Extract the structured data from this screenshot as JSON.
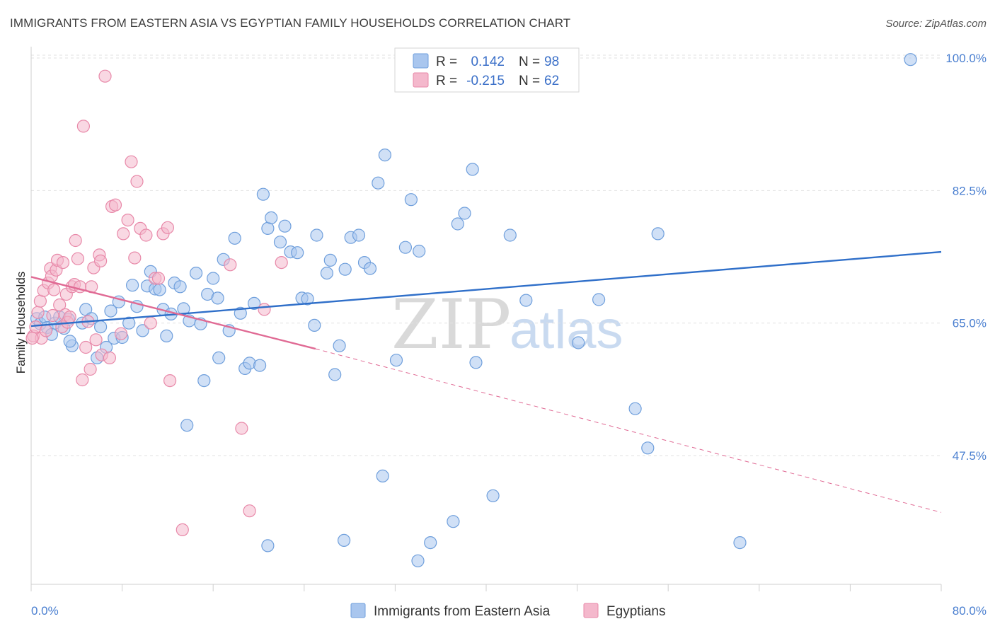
{
  "header": {
    "title": "IMMIGRANTS FROM EASTERN ASIA VS EGYPTIAN FAMILY HOUSEHOLDS CORRELATION CHART",
    "source": "Source: ZipAtlas.com"
  },
  "watermark": {
    "zip": "ZIP",
    "atlas": "atlas"
  },
  "legend": {
    "rows": [
      {
        "r_label": "R =",
        "r_value": "0.142",
        "n_label": "N =",
        "n_value": "98"
      },
      {
        "r_label": "R =",
        "r_value": "-0.215",
        "n_label": "N =",
        "n_value": "62"
      }
    ]
  },
  "bottom_legend": {
    "items": [
      "Immigrants from Eastern Asia",
      "Egyptians"
    ]
  },
  "colors": {
    "blue": "#6f9fdc",
    "blue_fill": "#a9c6ee",
    "blue_line": "#2f6fc9",
    "pink": "#e889a9",
    "pink_fill": "#f4b8cc",
    "pink_line": "#e06a94",
    "grid": "#e2e2e2"
  },
  "chart_data": {
    "type": "scatter",
    "title": "IMMIGRANTS FROM EASTERN ASIA VS EGYPTIAN FAMILY HOUSEHOLDS CORRELATION CHART",
    "xlabel": "",
    "ylabel": "Family Households",
    "xlim": [
      0,
      80
    ],
    "ylim": [
      30.5,
      101.5
    ],
    "x_tick_labels": [
      "0.0%",
      "80.0%"
    ],
    "y_ticks": [
      47.5,
      65.0,
      82.5,
      100.0
    ],
    "y_tick_labels": [
      "47.5%",
      "65.0%",
      "82.5%",
      "100.0%"
    ],
    "grid": true,
    "legend_position": "top-center",
    "series": [
      {
        "name": "Immigrants from Eastern Asia",
        "color": "#6f9fdc",
        "r": 0.142,
        "n": 98,
        "trend": {
          "x": [
            0,
            80
          ],
          "y": [
            64.6,
            74.4
          ]
        },
        "points": [
          [
            0.5,
            65.6
          ],
          [
            0.8,
            64.9
          ],
          [
            1.2,
            65.8
          ],
          [
            1.4,
            64.4
          ],
          [
            1.8,
            63.5
          ],
          [
            2.1,
            65.0
          ],
          [
            2.5,
            65.8
          ],
          [
            2.9,
            64.3
          ],
          [
            3.3,
            65.5
          ],
          [
            3.6,
            62.0
          ],
          [
            3.4,
            62.6
          ],
          [
            4.5,
            65.0
          ],
          [
            4.8,
            66.8
          ],
          [
            5.3,
            65.6
          ],
          [
            5.8,
            60.4
          ],
          [
            6.1,
            64.5
          ],
          [
            6.6,
            61.8
          ],
          [
            7.0,
            66.6
          ],
          [
            7.3,
            63.0
          ],
          [
            7.7,
            67.8
          ],
          [
            8.0,
            63.1
          ],
          [
            8.6,
            65.0
          ],
          [
            8.9,
            70.0
          ],
          [
            9.3,
            67.2
          ],
          [
            9.8,
            64.0
          ],
          [
            10.2,
            69.9
          ],
          [
            10.5,
            71.8
          ],
          [
            10.9,
            69.5
          ],
          [
            11.3,
            69.4
          ],
          [
            11.6,
            66.8
          ],
          [
            11.9,
            63.3
          ],
          [
            12.3,
            66.2
          ],
          [
            12.6,
            70.3
          ],
          [
            13.1,
            69.8
          ],
          [
            13.4,
            66.9
          ],
          [
            13.9,
            65.3
          ],
          [
            14.5,
            71.6
          ],
          [
            14.9,
            64.9
          ],
          [
            15.5,
            68.8
          ],
          [
            16.0,
            70.9
          ],
          [
            16.4,
            68.3
          ],
          [
            16.9,
            73.4
          ],
          [
            17.4,
            64.0
          ],
          [
            17.9,
            76.2
          ],
          [
            18.4,
            66.3
          ],
          [
            18.8,
            59.0
          ],
          [
            19.2,
            59.7
          ],
          [
            19.6,
            67.6
          ],
          [
            20.1,
            59.4
          ],
          [
            20.4,
            82.0
          ],
          [
            20.8,
            77.5
          ],
          [
            21.1,
            78.9
          ],
          [
            21.9,
            75.7
          ],
          [
            22.3,
            77.8
          ],
          [
            22.8,
            74.4
          ],
          [
            23.4,
            74.3
          ],
          [
            23.8,
            68.3
          ],
          [
            24.3,
            68.2
          ],
          [
            24.9,
            64.7
          ],
          [
            25.1,
            76.6
          ],
          [
            26.0,
            71.6
          ],
          [
            26.3,
            73.3
          ],
          [
            26.7,
            58.2
          ],
          [
            27.1,
            62.0
          ],
          [
            27.6,
            72.1
          ],
          [
            28.1,
            76.3
          ],
          [
            28.8,
            76.6
          ],
          [
            29.3,
            73.0
          ],
          [
            29.8,
            72.2
          ],
          [
            30.5,
            83.5
          ],
          [
            31.1,
            87.2
          ],
          [
            32.1,
            60.1
          ],
          [
            32.9,
            75.0
          ],
          [
            33.4,
            81.3
          ],
          [
            34.1,
            74.5
          ],
          [
            35.1,
            36.0
          ],
          [
            37.1,
            38.8
          ],
          [
            37.5,
            78.1
          ],
          [
            38.1,
            79.5
          ],
          [
            38.8,
            85.3
          ],
          [
            39.1,
            59.8
          ],
          [
            40.6,
            42.2
          ],
          [
            42.1,
            76.6
          ],
          [
            48.1,
            62.4
          ],
          [
            49.9,
            68.1
          ],
          [
            53.1,
            53.7
          ],
          [
            54.2,
            48.5
          ],
          [
            55.1,
            76.8
          ],
          [
            16.5,
            60.4
          ],
          [
            27.5,
            36.3
          ],
          [
            34.0,
            33.6
          ],
          [
            43.5,
            68.0
          ],
          [
            30.9,
            44.8
          ],
          [
            20.8,
            35.6
          ],
          [
            62.3,
            36.0
          ],
          [
            77.3,
            99.8
          ],
          [
            13.7,
            51.5
          ],
          [
            15.2,
            57.4
          ]
        ]
      },
      {
        "name": "Egyptians",
        "color": "#e889a9",
        "r": -0.215,
        "n": 62,
        "trend": {
          "x": [
            0,
            25
          ],
          "y": [
            71.1,
            61.6
          ]
        },
        "trend_extension": {
          "x": [
            25,
            80
          ],
          "y": [
            61.6,
            40.0
          ]
        },
        "points": [
          [
            0.2,
            63.3
          ],
          [
            0.4,
            64.5
          ],
          [
            0.6,
            66.4
          ],
          [
            0.8,
            67.9
          ],
          [
            0.9,
            63.0
          ],
          [
            1.1,
            69.3
          ],
          [
            1.3,
            64.0
          ],
          [
            1.5,
            70.3
          ],
          [
            1.7,
            72.2
          ],
          [
            1.8,
            71.2
          ],
          [
            1.9,
            66.0
          ],
          [
            2.0,
            69.4
          ],
          [
            2.2,
            72.0
          ],
          [
            2.3,
            73.3
          ],
          [
            2.5,
            67.4
          ],
          [
            2.7,
            64.5
          ],
          [
            2.8,
            73.0
          ],
          [
            3.0,
            66.1
          ],
          [
            3.1,
            68.8
          ],
          [
            3.2,
            65.1
          ],
          [
            3.4,
            65.8
          ],
          [
            3.6,
            69.8
          ],
          [
            3.8,
            70.1
          ],
          [
            3.9,
            75.9
          ],
          [
            4.1,
            73.5
          ],
          [
            4.3,
            69.8
          ],
          [
            4.5,
            57.5
          ],
          [
            4.6,
            91.0
          ],
          [
            4.8,
            61.8
          ],
          [
            5.0,
            65.2
          ],
          [
            5.2,
            58.9
          ],
          [
            5.3,
            69.8
          ],
          [
            5.5,
            72.3
          ],
          [
            5.7,
            62.8
          ],
          [
            6.0,
            74.0
          ],
          [
            6.1,
            73.2
          ],
          [
            6.2,
            60.8
          ],
          [
            6.5,
            97.6
          ],
          [
            6.9,
            60.4
          ],
          [
            7.1,
            80.4
          ],
          [
            7.4,
            80.6
          ],
          [
            7.9,
            63.6
          ],
          [
            8.1,
            76.8
          ],
          [
            8.5,
            78.6
          ],
          [
            8.8,
            86.3
          ],
          [
            9.1,
            73.6
          ],
          [
            9.3,
            83.7
          ],
          [
            9.6,
            77.5
          ],
          [
            10.1,
            76.6
          ],
          [
            10.5,
            65.0
          ],
          [
            10.9,
            70.9
          ],
          [
            11.2,
            70.9
          ],
          [
            11.6,
            76.8
          ],
          [
            12.0,
            77.6
          ],
          [
            12.2,
            57.4
          ],
          [
            13.3,
            37.7
          ],
          [
            17.5,
            72.7
          ],
          [
            18.5,
            51.1
          ],
          [
            19.2,
            40.2
          ],
          [
            20.5,
            66.8
          ],
          [
            22.0,
            73.0
          ],
          [
            0.1,
            63.0
          ]
        ]
      }
    ]
  }
}
